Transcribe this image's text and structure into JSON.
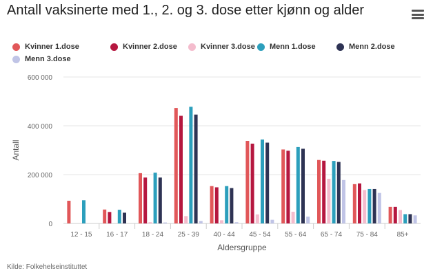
{
  "title": "Antall vaksinerte med 1., 2. og 3. dose etter kjønn og alder",
  "source": "Kilde: Folkehelseinstituttet",
  "menu_icon": "hamburger-menu-icon",
  "chart_data": {
    "type": "bar",
    "title": "Antall vaksinerte med 1., 2. og 3. dose etter kjønn og alder",
    "xlabel": "Aldersgruppe",
    "ylabel": "Antall",
    "ylim": [
      0,
      600000
    ],
    "yticks": [
      0,
      200000,
      400000,
      600000
    ],
    "ytick_labels": [
      "0",
      "200 000",
      "400 000",
      "600 000"
    ],
    "grid": true,
    "legend_position": "top",
    "categories": [
      "12 - 15",
      "16 - 17",
      "18 - 24",
      "25 - 39",
      "40 - 44",
      "45 - 54",
      "55 - 64",
      "65 - 74",
      "75 - 84",
      "85+"
    ],
    "series": [
      {
        "name": "Kvinner 1.dose",
        "color": "#e15759",
        "values": [
          93000,
          57000,
          206000,
          473000,
          153000,
          338000,
          303000,
          260000,
          161000,
          68000
        ]
      },
      {
        "name": "Kvinner 2.dose",
        "color": "#b5173f",
        "values": [
          0,
          47000,
          188000,
          441000,
          148000,
          327000,
          298000,
          257000,
          164000,
          68000
        ]
      },
      {
        "name": "Kvinner 3.dose",
        "color": "#f4bccd",
        "values": [
          0,
          0,
          5000,
          30000,
          13000,
          37000,
          48000,
          183000,
          137000,
          55000
        ]
      },
      {
        "name": "Menn 1.dose",
        "color": "#2c9fbc",
        "values": [
          95000,
          56000,
          208000,
          478000,
          153000,
          344000,
          313000,
          256000,
          141000,
          38000
        ]
      },
      {
        "name": "Menn 2.dose",
        "color": "#2e3354",
        "values": [
          0,
          44000,
          188000,
          446000,
          145000,
          331000,
          306000,
          252000,
          141000,
          38000
        ]
      },
      {
        "name": "Menn 3.dose",
        "color": "#c0c4e6",
        "values": [
          0,
          0,
          4000,
          10000,
          5000,
          15000,
          28000,
          178000,
          125000,
          33000
        ]
      }
    ]
  }
}
